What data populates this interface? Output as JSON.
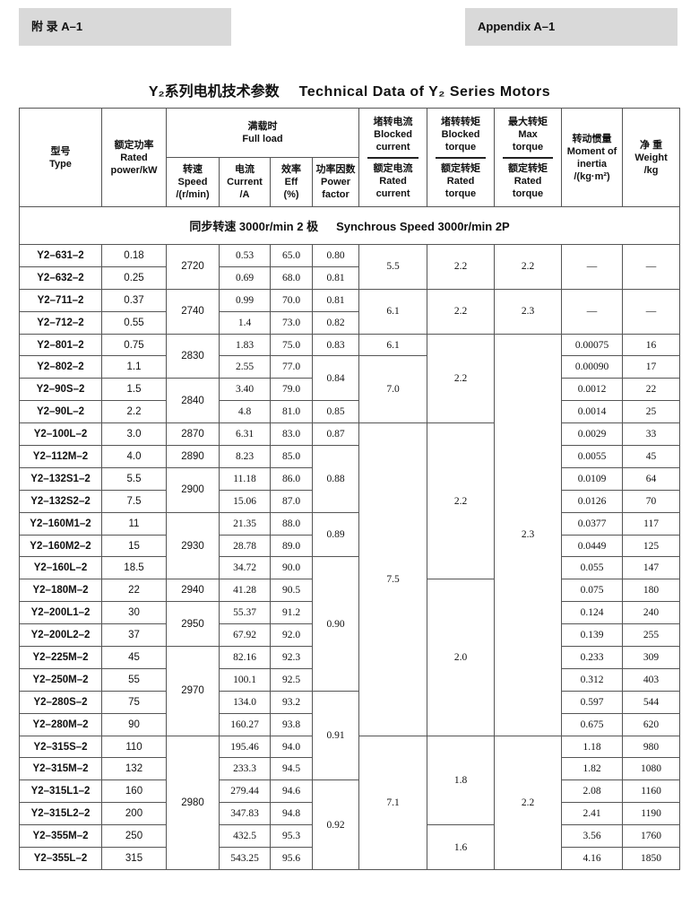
{
  "banner_left": "附 录 A–1",
  "banner_right": "Appendix A–1",
  "title_cn": "Y₂系列电机技术参数",
  "title_en": "Technical Data of Y₂ Series Motors",
  "headers": {
    "type": [
      "型号",
      "Type"
    ],
    "power": [
      "额定功率",
      "Rated",
      "power/kW"
    ],
    "full_load": [
      "满载时",
      "Full load"
    ],
    "speed": [
      "转速",
      "Speed",
      "/(r/min)"
    ],
    "current": [
      "电流",
      "Current",
      "/A"
    ],
    "eff": [
      "效率",
      "Eff",
      "(%)"
    ],
    "pf": [
      "功率因数",
      "Power",
      "factor"
    ],
    "blocked_current": {
      "top": [
        "堵转电流",
        "Blocked",
        "current"
      ],
      "bottom": [
        "额定电流",
        "Rated",
        "current"
      ]
    },
    "blocked_torque": {
      "top": [
        "堵转转矩",
        "Blocked",
        "torque"
      ],
      "bottom": [
        "额定转矩",
        "Rated",
        "torque"
      ]
    },
    "max_torque": {
      "top": [
        "最大转矩",
        "Max",
        "torque"
      ],
      "bottom": [
        "额定转矩",
        "Rated",
        "torque"
      ]
    },
    "inertia": [
      "转动惯量",
      "Moment of",
      "inertia",
      "/(kg·m²)"
    ],
    "weight": [
      "净 重",
      "Weight",
      "/kg"
    ]
  },
  "section": {
    "cn": "同步转速 3000r/min 2 极",
    "en": "Synchrous Speed 3000r/min 2P"
  },
  "rows": [
    [
      "Y2–631–2",
      "0.18",
      "2720",
      "0.53",
      "65.0",
      "0.80",
      "5.5",
      "2.2",
      "2.2",
      "—",
      "—"
    ],
    [
      "Y2–632–2",
      "0.25",
      null,
      "0.69",
      "68.0",
      "0.81",
      null,
      null,
      null,
      null,
      null
    ],
    [
      "Y2–711–2",
      "0.37",
      "2740",
      "0.99",
      "70.0",
      "0.81",
      "6.1",
      "2.2",
      "2.3",
      "—",
      "—"
    ],
    [
      "Y2–712–2",
      "0.55",
      null,
      "1.4",
      "73.0",
      "0.82",
      null,
      null,
      null,
      null,
      null
    ],
    [
      "Y2–801–2",
      "0.75",
      "2830",
      "1.83",
      "75.0",
      "0.83",
      "6.1",
      "2.2",
      "2.3",
      "0.00075",
      "16"
    ],
    [
      "Y2–802–2",
      "1.1",
      null,
      "2.55",
      "77.0",
      "0.84",
      "7.0",
      null,
      null,
      "0.00090",
      "17"
    ],
    [
      "Y2–90S–2",
      "1.5",
      "2840",
      "3.40",
      "79.0",
      null,
      null,
      null,
      null,
      "0.0012",
      "22"
    ],
    [
      "Y2–90L–2",
      "2.2",
      null,
      "4.8",
      "81.0",
      "0.85",
      null,
      null,
      null,
      "0.0014",
      "25"
    ],
    [
      "Y2–100L–2",
      "3.0",
      "2870",
      "6.31",
      "83.0",
      "0.87",
      "7.5",
      "2.2",
      null,
      "0.0029",
      "33"
    ],
    [
      "Y2–112M–2",
      "4.0",
      "2890",
      "8.23",
      "85.0",
      "0.88",
      null,
      null,
      null,
      "0.0055",
      "45"
    ],
    [
      "Y2–132S1–2",
      "5.5",
      "2900",
      "11.18",
      "86.0",
      null,
      null,
      null,
      null,
      "0.0109",
      "64"
    ],
    [
      "Y2–132S2–2",
      "7.5",
      null,
      "15.06",
      "87.0",
      null,
      null,
      null,
      null,
      "0.0126",
      "70"
    ],
    [
      "Y2–160M1–2",
      "11",
      "2930",
      "21.35",
      "88.0",
      "0.89",
      null,
      null,
      null,
      "0.0377",
      "117"
    ],
    [
      "Y2–160M2–2",
      "15",
      null,
      "28.78",
      "89.0",
      null,
      null,
      null,
      null,
      "0.0449",
      "125"
    ],
    [
      "Y2–160L–2",
      "18.5",
      null,
      "34.72",
      "90.0",
      "0.90",
      null,
      null,
      null,
      "0.055",
      "147"
    ],
    [
      "Y2–180M–2",
      "22",
      "2940",
      "41.28",
      "90.5",
      null,
      null,
      "2.0",
      null,
      "0.075",
      "180"
    ],
    [
      "Y2–200L1–2",
      "30",
      "2950",
      "55.37",
      "91.2",
      null,
      null,
      null,
      null,
      "0.124",
      "240"
    ],
    [
      "Y2–200L2–2",
      "37",
      null,
      "67.92",
      "92.0",
      null,
      null,
      null,
      null,
      "0.139",
      "255"
    ],
    [
      "Y2–225M–2",
      "45",
      "2970",
      "82.16",
      "92.3",
      null,
      null,
      null,
      null,
      "0.233",
      "309"
    ],
    [
      "Y2–250M–2",
      "55",
      null,
      "100.1",
      "92.5",
      null,
      null,
      null,
      null,
      "0.312",
      "403"
    ],
    [
      "Y2–280S–2",
      "75",
      null,
      "134.0",
      "93.2",
      "0.91",
      null,
      null,
      null,
      "0.597",
      "544"
    ],
    [
      "Y2–280M–2",
      "90",
      null,
      "160.27",
      "93.8",
      null,
      null,
      null,
      null,
      "0.675",
      "620"
    ],
    [
      "Y2–315S–2",
      "110",
      "2980",
      "195.46",
      "94.0",
      null,
      "7.1",
      "1.8",
      "2.2",
      "1.18",
      "980"
    ],
    [
      "Y2–315M–2",
      "132",
      null,
      "233.3",
      "94.5",
      null,
      null,
      null,
      null,
      "1.82",
      "1080"
    ],
    [
      "Y2–315L1–2",
      "160",
      null,
      "279.44",
      "94.6",
      "0.92",
      null,
      null,
      null,
      "2.08",
      "1160"
    ],
    [
      "Y2–315L2–2",
      "200",
      null,
      "347.83",
      "94.8",
      null,
      null,
      null,
      null,
      "2.41",
      "1190"
    ],
    [
      "Y2–355M–2",
      "250",
      null,
      "432.5",
      "95.3",
      null,
      null,
      "1.6",
      null,
      "3.56",
      "1760"
    ],
    [
      "Y2–355L–2",
      "315",
      null,
      "543.25",
      "95.6",
      null,
      null,
      null,
      null,
      "4.16",
      "1850"
    ]
  ]
}
